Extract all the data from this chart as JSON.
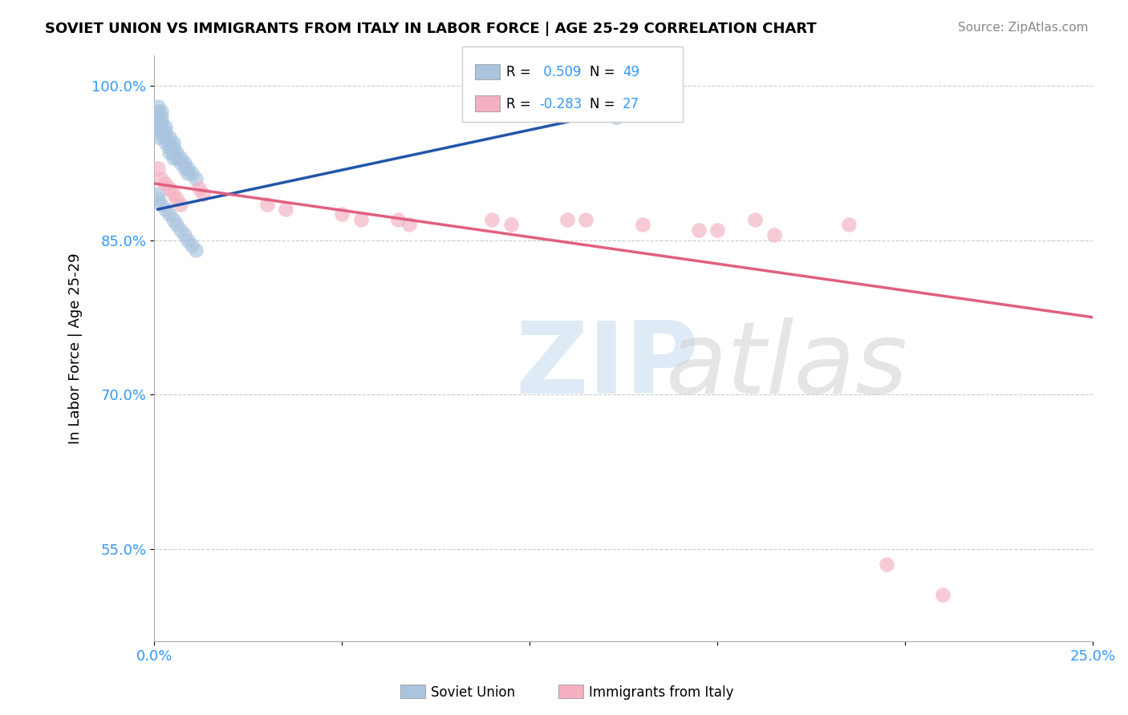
{
  "title": "SOVIET UNION VS IMMIGRANTS FROM ITALY IN LABOR FORCE | AGE 25-29 CORRELATION CHART",
  "source": "Source: ZipAtlas.com",
  "ylabel": "In Labor Force | Age 25-29",
  "xlim": [
    0.0,
    0.25
  ],
  "ylim": [
    0.46,
    1.03
  ],
  "yticks": [
    0.55,
    0.7,
    0.85,
    1.0
  ],
  "grid_color": "#cccccc",
  "background_color": "#ffffff",
  "soviet_color": "#aac4df",
  "soviet_line_color": "#2255aa",
  "italy_color": "#f4b0c0",
  "italy_line_color": "#e06080",
  "soviet_R": 0.509,
  "soviet_N": 49,
  "italy_R": -0.283,
  "italy_N": 27,
  "soviet_x": [
    0.001,
    0.001,
    0.001,
    0.001,
    0.001,
    0.001,
    0.001,
    0.002,
    0.002,
    0.002,
    0.002,
    0.002,
    0.003,
    0.003,
    0.003,
    0.003,
    0.004,
    0.004,
    0.004,
    0.004,
    0.005,
    0.005,
    0.005,
    0.005,
    0.006,
    0.006,
    0.007,
    0.007,
    0.008,
    0.008,
    0.009,
    0.009,
    0.01,
    0.011,
    0.001,
    0.001,
    0.002,
    0.003,
    0.004,
    0.005,
    0.006,
    0.007,
    0.008,
    0.009,
    0.01,
    0.011,
    0.119,
    0.121,
    0.123
  ],
  "soviet_y": [
    0.98,
    0.975,
    0.97,
    0.965,
    0.96,
    0.955,
    0.95,
    0.975,
    0.97,
    0.965,
    0.96,
    0.955,
    0.96,
    0.955,
    0.95,
    0.945,
    0.95,
    0.945,
    0.94,
    0.935,
    0.945,
    0.94,
    0.935,
    0.93,
    0.935,
    0.93,
    0.93,
    0.925,
    0.925,
    0.92,
    0.92,
    0.915,
    0.915,
    0.91,
    0.895,
    0.89,
    0.885,
    0.88,
    0.875,
    0.87,
    0.865,
    0.86,
    0.855,
    0.85,
    0.845,
    0.84,
    0.98,
    0.975,
    0.97
  ],
  "italy_x": [
    0.001,
    0.002,
    0.003,
    0.004,
    0.005,
    0.006,
    0.007,
    0.012,
    0.013,
    0.03,
    0.035,
    0.05,
    0.055,
    0.065,
    0.068,
    0.09,
    0.095,
    0.11,
    0.115,
    0.13,
    0.145,
    0.15,
    0.16,
    0.165,
    0.185,
    0.195,
    0.21
  ],
  "italy_y": [
    0.92,
    0.91,
    0.905,
    0.9,
    0.895,
    0.89,
    0.885,
    0.9,
    0.895,
    0.885,
    0.88,
    0.875,
    0.87,
    0.87,
    0.865,
    0.87,
    0.865,
    0.87,
    0.87,
    0.865,
    0.86,
    0.86,
    0.87,
    0.855,
    0.865,
    0.535,
    0.505
  ],
  "italy_line_x0": 0.0,
  "italy_line_x1": 0.25,
  "italy_line_y0": 0.905,
  "italy_line_y1": 0.775,
  "soviet_line_x0": 0.001,
  "soviet_line_x1": 0.123,
  "soviet_line_y0": 0.88,
  "soviet_line_y1": 0.975
}
